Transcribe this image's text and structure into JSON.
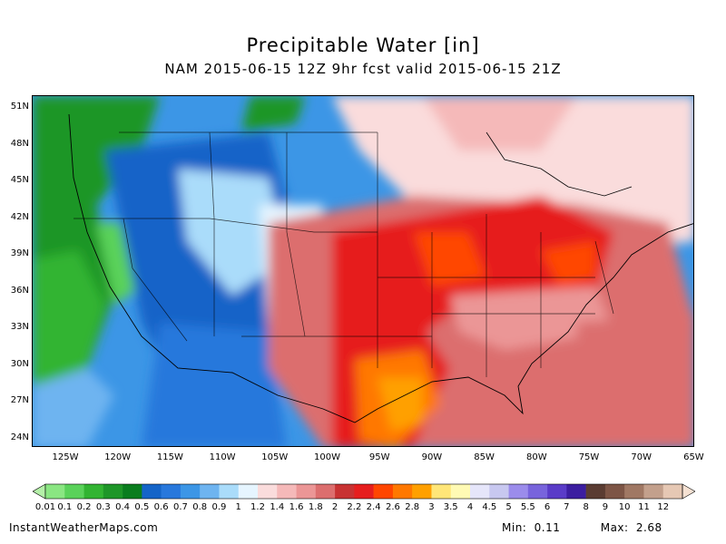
{
  "title": "Precipitable Water [in]",
  "subtitle": "NAM 2015-06-15 12Z 9hr fcst valid 2015-06-15 21Z",
  "credit": "InstantWeatherMaps.com",
  "stats": {
    "min_label": "Min:",
    "min_value": "0.11",
    "max_label": "Max:",
    "max_value": "2.68"
  },
  "map": {
    "lat_labels": [
      "51N",
      "48N",
      "45N",
      "42N",
      "39N",
      "36N",
      "33N",
      "30N",
      "27N",
      "24N"
    ],
    "lon_labels": [
      "125W",
      "120W",
      "115W",
      "110W",
      "105W",
      "100W",
      "95W",
      "90W",
      "85W",
      "80W",
      "75W",
      "70W",
      "65W"
    ]
  },
  "legend": {
    "labels": [
      "0.01",
      "0.1",
      "0.2",
      "0.3",
      "0.4",
      "0.5",
      "0.6",
      "0.7",
      "0.8",
      "0.9",
      "1",
      "1.2",
      "1.4",
      "1.6",
      "1.8",
      "2",
      "2.2",
      "2.4",
      "2.6",
      "2.8",
      "3",
      "3.5",
      "4",
      "4.5",
      "5",
      "5.5",
      "6",
      "7",
      "8",
      "9",
      "10",
      "11",
      "12"
    ],
    "colors": [
      "#b4f0a8",
      "#8ae682",
      "#5ad25a",
      "#32b432",
      "#1e9628",
      "#0a7d1e",
      "#1464c8",
      "#2878dc",
      "#3c96e6",
      "#6eb4f0",
      "#aadcfa",
      "#e6f5ff",
      "#fadcdc",
      "#f5b9b9",
      "#eb9696",
      "#dc6e6e",
      "#c83232",
      "#e61e1e",
      "#ff4600",
      "#ff7800",
      "#ffa000",
      "#ffe678",
      "#fffab4",
      "#e6e6fa",
      "#c8c8f0",
      "#9b8ceb",
      "#7864dc",
      "#5a3cc8",
      "#3c1ea0",
      "#5a3c32",
      "#7d5546",
      "#a07864",
      "#c3a08c",
      "#e6c8b4",
      "#f5e1d2"
    ]
  }
}
